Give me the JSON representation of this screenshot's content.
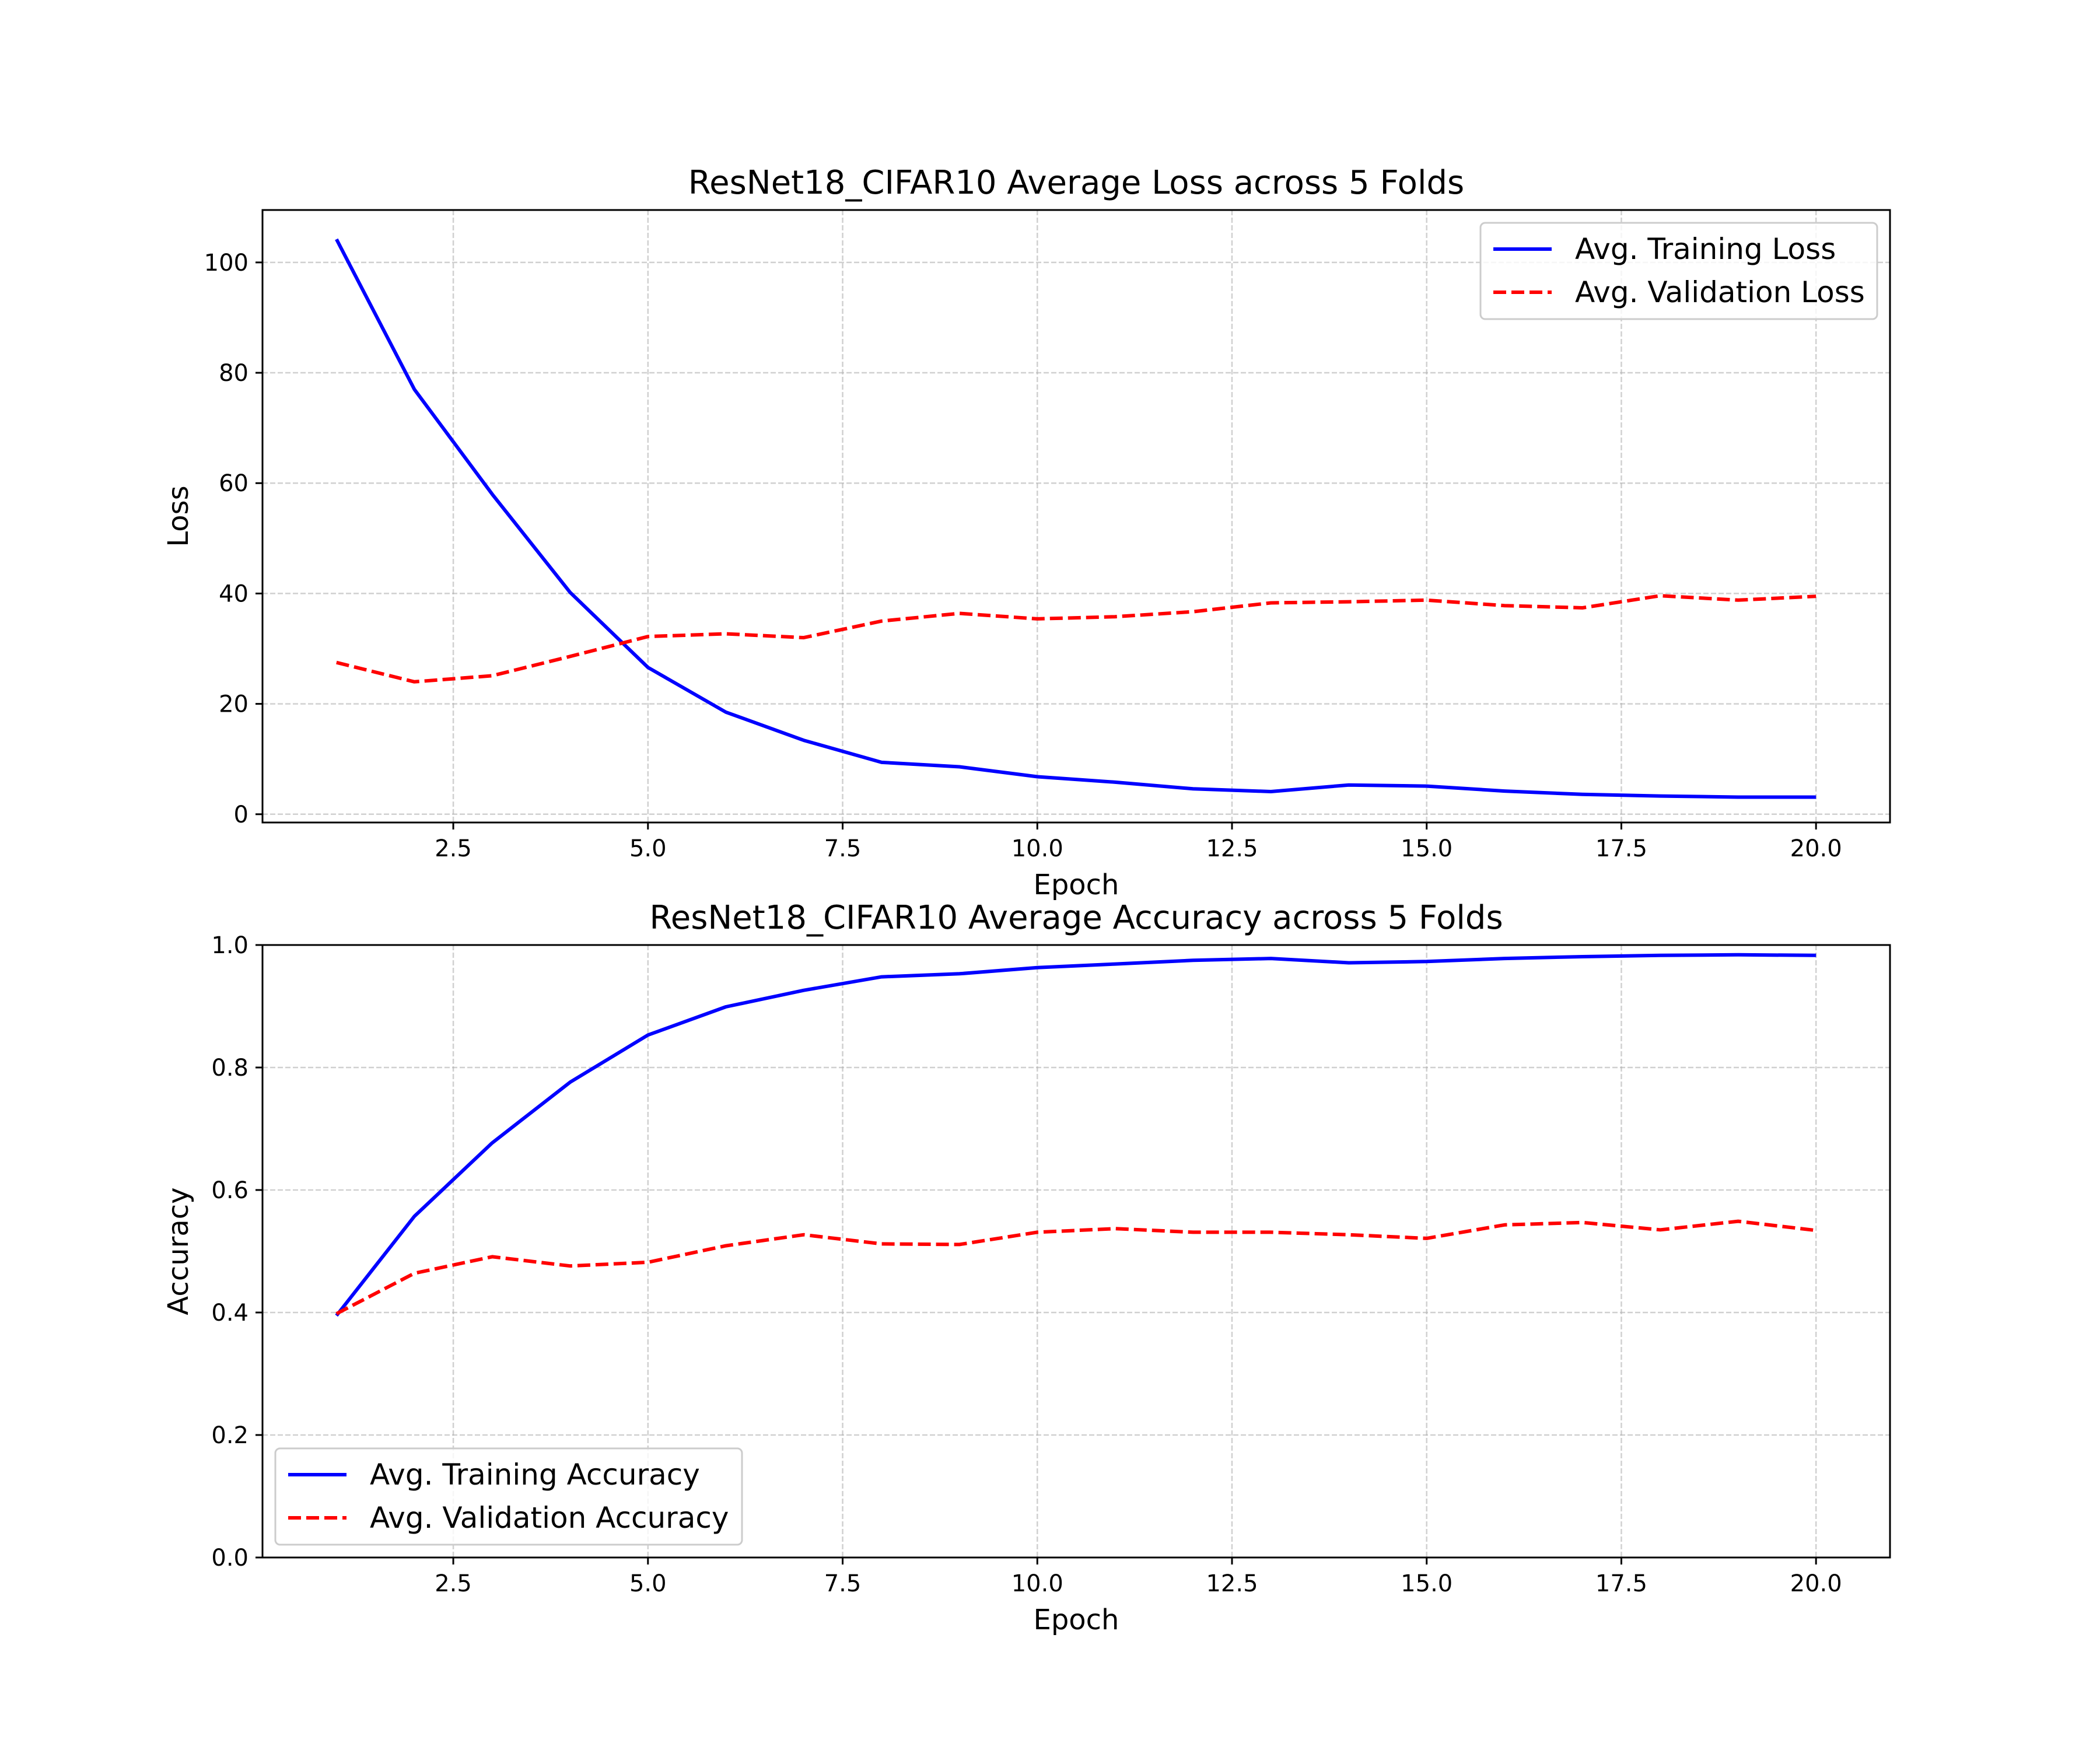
{
  "chart_data": [
    {
      "type": "line",
      "title": "ResNet18_CIFAR10 Average Loss across 5 Folds",
      "xlabel": "Epoch",
      "ylabel": "Loss",
      "xlim": [
        0.05,
        20.95
      ],
      "ylim": [
        -1.5,
        109.5
      ],
      "xticks": [
        2.5,
        5.0,
        7.5,
        10.0,
        12.5,
        15.0,
        17.5,
        20.0
      ],
      "xtick_labels": [
        "2.5",
        "5.0",
        "7.5",
        "10.0",
        "12.5",
        "15.0",
        "17.5",
        "20.0"
      ],
      "yticks": [
        0,
        20,
        40,
        60,
        80,
        100
      ],
      "ytick_labels": [
        "0",
        "20",
        "40",
        "60",
        "80",
        "100"
      ],
      "grid": true,
      "legend_position": "top-right",
      "x": [
        1,
        2,
        3,
        4,
        5,
        6,
        7,
        8,
        9,
        10,
        11,
        12,
        13,
        14,
        15,
        16,
        17,
        18,
        19,
        20
      ],
      "series": [
        {
          "name": "Avg. Training Loss",
          "color": "#0000ff",
          "style": "solid",
          "values": [
            104.2,
            77.0,
            58.0,
            40.2,
            26.6,
            18.5,
            13.4,
            9.4,
            8.6,
            6.8,
            5.8,
            4.6,
            4.1,
            5.3,
            5.1,
            4.2,
            3.6,
            3.3,
            3.1,
            3.1
          ]
        },
        {
          "name": "Avg. Validation Loss",
          "color": "#ff0000",
          "style": "dashed",
          "values": [
            27.5,
            24.0,
            25.1,
            28.6,
            32.2,
            32.7,
            32.0,
            35.0,
            36.4,
            35.4,
            35.8,
            36.7,
            38.3,
            38.5,
            38.8,
            37.8,
            37.4,
            39.6,
            38.8,
            39.5
          ]
        }
      ]
    },
    {
      "type": "line",
      "title": "ResNet18_CIFAR10 Average Accuracy across 5 Folds",
      "xlabel": "Epoch",
      "ylabel": "Accuracy",
      "xlim": [
        0.05,
        20.95
      ],
      "ylim": [
        0.0,
        1.0
      ],
      "xticks": [
        2.5,
        5.0,
        7.5,
        10.0,
        12.5,
        15.0,
        17.5,
        20.0
      ],
      "xtick_labels": [
        "2.5",
        "5.0",
        "7.5",
        "10.0",
        "12.5",
        "15.0",
        "17.5",
        "20.0"
      ],
      "yticks": [
        0.0,
        0.2,
        0.4,
        0.6,
        0.8,
        1.0
      ],
      "ytick_labels": [
        "0.0",
        "0.2",
        "0.4",
        "0.6",
        "0.8",
        "1.0"
      ],
      "grid": true,
      "legend_position": "bottom-left",
      "x": [
        1,
        2,
        3,
        4,
        5,
        6,
        7,
        8,
        9,
        10,
        11,
        12,
        13,
        14,
        15,
        16,
        17,
        18,
        19,
        20
      ],
      "series": [
        {
          "name": "Avg. Training Accuracy",
          "color": "#0000ff",
          "style": "solid",
          "values": [
            0.395,
            0.557,
            0.677,
            0.776,
            0.853,
            0.899,
            0.926,
            0.948,
            0.953,
            0.963,
            0.969,
            0.975,
            0.978,
            0.971,
            0.973,
            0.978,
            0.981,
            0.983,
            0.984,
            0.983
          ]
        },
        {
          "name": "Avg. Validation Accuracy",
          "color": "#ff0000",
          "style": "dashed",
          "values": [
            0.398,
            0.464,
            0.491,
            0.476,
            0.482,
            0.509,
            0.527,
            0.512,
            0.511,
            0.531,
            0.537,
            0.531,
            0.531,
            0.527,
            0.521,
            0.543,
            0.547,
            0.535,
            0.549,
            0.534
          ]
        }
      ]
    }
  ]
}
